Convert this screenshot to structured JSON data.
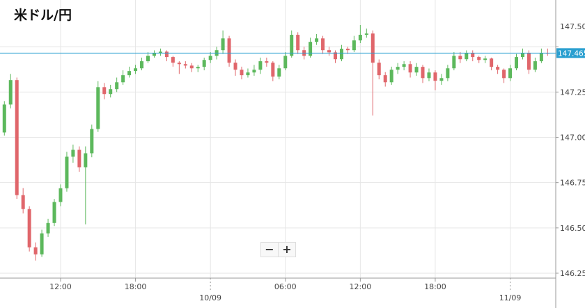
{
  "chart_data": {
    "type": "candlestick",
    "title": "米ドル/円",
    "x": [
      7.5,
      8,
      8.5,
      9,
      9.5,
      10,
      10.5,
      11,
      11.5,
      12,
      12.5,
      13,
      13.5,
      14,
      14.5,
      15,
      15.5,
      16,
      16.5,
      17,
      17.5,
      18,
      18.5,
      19,
      19.5,
      20,
      20.5,
      21,
      21.5,
      22,
      22.5,
      23,
      23.5,
      24,
      24.5,
      25,
      25.5,
      26,
      26.5,
      27,
      27.5,
      28,
      28.5,
      29,
      29.5,
      30,
      30.5,
      31,
      31.5,
      32,
      32.5,
      33,
      33.5,
      34,
      34.5,
      35,
      35.5,
      36,
      36.5,
      37,
      37.5,
      38,
      38.5,
      39,
      39.5,
      40,
      40.5,
      41,
      41.5,
      42,
      42.5,
      43,
      43.5,
      44,
      44.5,
      45,
      45.5,
      46,
      46.5,
      47,
      47.5,
      48,
      48.5,
      49,
      49.5,
      50,
      50.5,
      51
    ],
    "open": [
      147.027,
      147.181,
      147.316,
      146.681,
      146.604,
      146.393,
      146.354,
      146.47,
      146.527,
      146.643,
      146.719,
      146.893,
      146.931,
      146.835,
      146.912,
      147.046,
      147.277,
      147.239,
      147.266,
      147.304,
      147.343,
      147.366,
      147.381,
      147.42,
      147.45,
      147.466,
      147.473,
      147.443,
      147.412,
      147.404,
      147.396,
      147.381,
      147.389,
      147.427,
      147.45,
      147.481,
      147.546,
      147.412,
      147.373,
      147.343,
      147.358,
      147.373,
      147.42,
      147.412,
      147.335,
      147.381,
      147.45,
      147.566,
      147.481,
      147.45,
      147.527,
      147.546,
      147.481,
      147.469,
      147.431,
      147.489,
      147.481,
      147.535,
      147.566,
      147.573,
      147.412,
      147.343,
      147.304,
      147.373,
      147.389,
      147.404,
      147.358,
      147.389,
      147.327,
      147.358,
      147.312,
      147.327,
      147.381,
      147.45,
      147.431,
      147.466,
      147.443,
      147.427,
      147.435,
      147.389,
      147.373,
      147.327,
      147.381,
      147.443,
      147.466,
      147.373,
      147.42,
      147.466
    ],
    "high": [
      147.2,
      147.35,
      147.33,
      146.72,
      146.62,
      146.42,
      146.49,
      146.55,
      146.66,
      146.74,
      146.92,
      146.96,
      146.95,
      146.95,
      147.07,
      147.31,
      147.3,
      147.29,
      147.33,
      147.37,
      147.39,
      147.4,
      147.44,
      147.47,
      147.48,
      147.49,
      147.48,
      147.45,
      147.42,
      147.42,
      147.41,
      147.4,
      147.44,
      147.47,
      147.5,
      147.59,
      147.56,
      147.43,
      147.39,
      147.38,
      147.4,
      147.44,
      147.44,
      147.42,
      147.4,
      147.47,
      147.59,
      147.58,
      147.5,
      147.55,
      147.57,
      147.56,
      147.5,
      147.48,
      147.51,
      147.5,
      147.56,
      147.62,
      147.6,
      147.59,
      147.43,
      147.36,
      147.39,
      147.41,
      147.42,
      147.42,
      147.41,
      147.4,
      147.38,
      147.37,
      147.35,
      147.4,
      147.47,
      147.47,
      147.48,
      147.48,
      147.45,
      147.45,
      147.44,
      147.4,
      147.38,
      147.4,
      147.46,
      147.49,
      147.48,
      147.44,
      147.49,
      147.49
    ],
    "low": [
      147.01,
      147.16,
      146.66,
      146.58,
      146.37,
      146.32,
      146.34,
      146.45,
      146.51,
      146.62,
      146.7,
      146.86,
      146.81,
      146.52,
      146.89,
      147.03,
      147.21,
      147.22,
      147.25,
      147.29,
      147.33,
      147.35,
      147.37,
      147.41,
      147.44,
      147.45,
      147.42,
      147.39,
      147.35,
      147.38,
      147.36,
      147.36,
      147.37,
      147.41,
      147.43,
      147.46,
      147.39,
      147.34,
      147.32,
      147.33,
      147.34,
      147.35,
      147.39,
      147.31,
      147.32,
      147.37,
      147.44,
      147.46,
      147.43,
      147.44,
      147.51,
      147.46,
      147.45,
      147.41,
      147.42,
      147.46,
      147.47,
      147.52,
      147.55,
      147.12,
      147.32,
      147.28,
      147.29,
      147.35,
      147.37,
      147.33,
      147.34,
      147.3,
      147.31,
      147.26,
      147.29,
      147.31,
      147.37,
      147.41,
      147.42,
      147.42,
      147.41,
      147.41,
      147.37,
      147.35,
      147.3,
      147.31,
      147.37,
      147.43,
      147.35,
      147.36,
      147.41,
      147.45
    ],
    "close": [
      147.181,
      147.316,
      146.681,
      146.604,
      146.393,
      146.354,
      146.47,
      146.527,
      146.643,
      146.719,
      146.893,
      146.931,
      146.835,
      146.912,
      147.046,
      147.277,
      147.239,
      147.266,
      147.304,
      147.343,
      147.366,
      147.381,
      147.42,
      147.45,
      147.466,
      147.473,
      147.443,
      147.412,
      147.404,
      147.396,
      147.381,
      147.389,
      147.427,
      147.45,
      147.481,
      147.546,
      147.412,
      147.373,
      147.343,
      147.358,
      147.373,
      147.42,
      147.412,
      147.335,
      147.381,
      147.45,
      147.566,
      147.481,
      147.45,
      147.527,
      147.546,
      147.481,
      147.469,
      147.431,
      147.489,
      147.481,
      147.535,
      147.566,
      147.573,
      147.412,
      147.343,
      147.304,
      147.373,
      147.389,
      147.404,
      147.358,
      147.389,
      147.327,
      147.358,
      147.312,
      147.327,
      147.381,
      147.45,
      147.431,
      147.466,
      147.443,
      147.427,
      147.435,
      147.389,
      147.373,
      147.327,
      147.381,
      147.443,
      147.466,
      147.373,
      147.42,
      147.466,
      147.465
    ],
    "up_color": "#5cb85c",
    "down_color": "#e0666b",
    "xlim": [
      7.15,
      51.65
    ],
    "xticks": [
      {
        "value": 12,
        "label": "12:00"
      },
      {
        "value": 18,
        "label": "18:00"
      },
      {
        "value": 24,
        "label": "10/09"
      },
      {
        "value": 30,
        "label": "06:00"
      },
      {
        "value": 36,
        "label": "12:00"
      },
      {
        "value": 42,
        "label": "18:00"
      },
      {
        "value": 48,
        "label": "11/09"
      }
    ],
    "ylim": [
      146.223,
      147.758
    ],
    "yticks": [
      {
        "value": 146.25,
        "label": "146.250"
      },
      {
        "value": 146.5,
        "label": "146.500"
      },
      {
        "value": 146.75,
        "label": "146.750"
      },
      {
        "value": 147,
        "label": "147.000"
      },
      {
        "value": 147.25,
        "label": "147.250"
      },
      {
        "value": 147.5,
        "label": "147.500"
      }
    ],
    "last_price": 147.465,
    "last_price_color": "#2a9fd0",
    "grid": true
  },
  "controls": {
    "zoom_out": "−",
    "zoom_in": "+"
  }
}
